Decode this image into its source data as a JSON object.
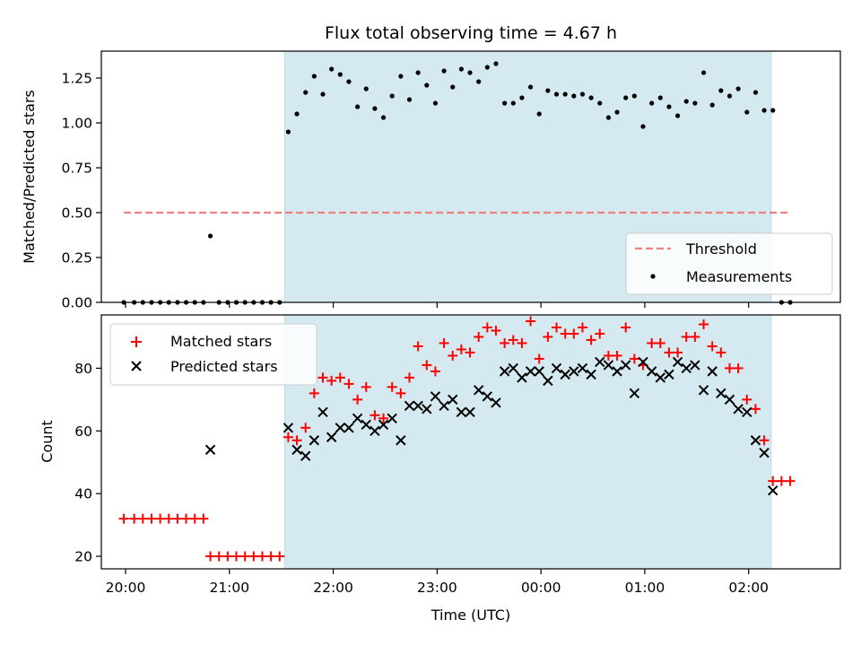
{
  "chart_data": [
    {
      "type": "scatter",
      "title": "Flux total observing time = 4.67 h",
      "xlabel": "",
      "ylabel": "Matched/Predicted stars",
      "xlim": [
        "19:46",
        "02:53"
      ],
      "ylim": [
        0,
        1.4
      ],
      "yticks": [
        "0.00",
        "0.25",
        "0.50",
        "0.75",
        "1.00",
        "1.25"
      ],
      "observing_window": [
        "21:32",
        "02:13"
      ],
      "shade_color": "#d4eaf0",
      "threshold": {
        "label": "Threshold",
        "value": 0.5,
        "from": "19:59",
        "to": "02:23",
        "color": "#f08080"
      },
      "legend": {
        "placement": "lower right"
      },
      "series": [
        {
          "name": "Measurements",
          "color": "#000000",
          "points": [
            [
              "19:59",
              0
            ],
            [
              "20:05",
              0
            ],
            [
              "20:10",
              0
            ],
            [
              "20:15",
              0
            ],
            [
              "20:20",
              0
            ],
            [
              "20:25",
              0
            ],
            [
              "20:30",
              0
            ],
            [
              "20:35",
              0
            ],
            [
              "20:40",
              0
            ],
            [
              "20:45",
              0
            ],
            [
              "20:49",
              0.37
            ],
            [
              "20:54",
              0
            ],
            [
              "20:59",
              0
            ],
            [
              "21:04",
              0
            ],
            [
              "21:09",
              0
            ],
            [
              "21:14",
              0
            ],
            [
              "21:19",
              0
            ],
            [
              "21:24",
              0
            ],
            [
              "21:29",
              0
            ],
            [
              "21:34",
              0.95
            ],
            [
              "21:39",
              1.05
            ],
            [
              "21:44",
              1.17
            ],
            [
              "21:49",
              1.26
            ],
            [
              "21:54",
              1.16
            ],
            [
              "21:59",
              1.3
            ],
            [
              "22:04",
              1.27
            ],
            [
              "22:09",
              1.23
            ],
            [
              "22:14",
              1.09
            ],
            [
              "22:19",
              1.19
            ],
            [
              "22:24",
              1.08
            ],
            [
              "22:29",
              1.03
            ],
            [
              "22:34",
              1.15
            ],
            [
              "22:39",
              1.26
            ],
            [
              "22:44",
              1.13
            ],
            [
              "22:49",
              1.28
            ],
            [
              "22:54",
              1.21
            ],
            [
              "22:59",
              1.11
            ],
            [
              "23:04",
              1.29
            ],
            [
              "23:09",
              1.2
            ],
            [
              "23:14",
              1.3
            ],
            [
              "23:19",
              1.28
            ],
            [
              "23:24",
              1.23
            ],
            [
              "23:29",
              1.31
            ],
            [
              "23:34",
              1.33
            ],
            [
              "23:39",
              1.11
            ],
            [
              "23:44",
              1.11
            ],
            [
              "23:49",
              1.14
            ],
            [
              "23:54",
              1.2
            ],
            [
              "23:59",
              1.05
            ],
            [
              "00:04",
              1.18
            ],
            [
              "00:09",
              1.16
            ],
            [
              "00:14",
              1.16
            ],
            [
              "00:19",
              1.15
            ],
            [
              "00:24",
              1.16
            ],
            [
              "00:29",
              1.14
            ],
            [
              "00:34",
              1.11
            ],
            [
              "00:39",
              1.03
            ],
            [
              "00:44",
              1.06
            ],
            [
              "00:49",
              1.14
            ],
            [
              "00:54",
              1.15
            ],
            [
              "00:59",
              0.98
            ],
            [
              "01:04",
              1.11
            ],
            [
              "01:09",
              1.14
            ],
            [
              "01:14",
              1.09
            ],
            [
              "01:19",
              1.04
            ],
            [
              "01:24",
              1.12
            ],
            [
              "01:29",
              1.11
            ],
            [
              "01:34",
              1.28
            ],
            [
              "01:39",
              1.1
            ],
            [
              "01:44",
              1.18
            ],
            [
              "01:49",
              1.15
            ],
            [
              "01:54",
              1.19
            ],
            [
              "01:59",
              1.06
            ],
            [
              "02:04",
              1.17
            ],
            [
              "02:09",
              1.07
            ],
            [
              "02:14",
              1.07
            ],
            [
              "02:19",
              0
            ],
            [
              "02:24",
              0
            ]
          ]
        }
      ]
    },
    {
      "type": "scatter",
      "title": "",
      "xlabel": "Time (UTC)",
      "ylabel": "Count",
      "xlim": [
        "19:46",
        "02:53"
      ],
      "ylim": [
        16,
        97
      ],
      "xticks": [
        "20:00",
        "21:00",
        "22:00",
        "23:00",
        "00:00",
        "01:00",
        "02:00"
      ],
      "yticks": [
        "20",
        "40",
        "60",
        "80"
      ],
      "observing_window": [
        "21:32",
        "02:13"
      ],
      "shade_color": "#d4eaf0",
      "legend": {
        "placement": "upper left"
      },
      "series": [
        {
          "name": "Matched stars",
          "marker": "plus",
          "color": "#ff0000",
          "points": [
            [
              "19:59",
              32
            ],
            [
              "20:05",
              32
            ],
            [
              "20:10",
              32
            ],
            [
              "20:15",
              32
            ],
            [
              "20:20",
              32
            ],
            [
              "20:25",
              32
            ],
            [
              "20:30",
              32
            ],
            [
              "20:35",
              32
            ],
            [
              "20:40",
              32
            ],
            [
              "20:45",
              32
            ],
            [
              "20:49",
              20
            ],
            [
              "20:54",
              20
            ],
            [
              "20:59",
              20
            ],
            [
              "21:04",
              20
            ],
            [
              "21:09",
              20
            ],
            [
              "21:14",
              20
            ],
            [
              "21:19",
              20
            ],
            [
              "21:24",
              20
            ],
            [
              "21:29",
              20
            ],
            [
              "21:34",
              58
            ],
            [
              "21:39",
              57
            ],
            [
              "21:44",
              61
            ],
            [
              "21:49",
              72
            ],
            [
              "21:54",
              77
            ],
            [
              "21:59",
              76
            ],
            [
              "22:04",
              77
            ],
            [
              "22:09",
              75
            ],
            [
              "22:14",
              70
            ],
            [
              "22:19",
              74
            ],
            [
              "22:24",
              65
            ],
            [
              "22:29",
              64
            ],
            [
              "22:34",
              74
            ],
            [
              "22:39",
              72
            ],
            [
              "22:44",
              77
            ],
            [
              "22:49",
              87
            ],
            [
              "22:54",
              81
            ],
            [
              "22:59",
              79
            ],
            [
              "23:04",
              88
            ],
            [
              "23:09",
              84
            ],
            [
              "23:14",
              86
            ],
            [
              "23:19",
              85
            ],
            [
              "23:24",
              90
            ],
            [
              "23:29",
              93
            ],
            [
              "23:34",
              92
            ],
            [
              "23:39",
              88
            ],
            [
              "23:44",
              89
            ],
            [
              "23:49",
              88
            ],
            [
              "23:54",
              95
            ],
            [
              "23:59",
              83
            ],
            [
              "00:04",
              90
            ],
            [
              "00:09",
              93
            ],
            [
              "00:14",
              91
            ],
            [
              "00:19",
              91
            ],
            [
              "00:24",
              93
            ],
            [
              "00:29",
              89
            ],
            [
              "00:34",
              91
            ],
            [
              "00:39",
              84
            ],
            [
              "00:44",
              84
            ],
            [
              "00:49",
              93
            ],
            [
              "00:54",
              83
            ],
            [
              "00:59",
              81
            ],
            [
              "01:04",
              88
            ],
            [
              "01:09",
              88
            ],
            [
              "01:14",
              85
            ],
            [
              "01:19",
              85
            ],
            [
              "01:24",
              90
            ],
            [
              "01:29",
              90
            ],
            [
              "01:34",
              94
            ],
            [
              "01:39",
              87
            ],
            [
              "01:44",
              85
            ],
            [
              "01:49",
              80
            ],
            [
              "01:54",
              80
            ],
            [
              "01:59",
              70
            ],
            [
              "02:04",
              67
            ],
            [
              "02:09",
              57
            ],
            [
              "02:14",
              44
            ],
            [
              "02:19",
              44
            ],
            [
              "02:24",
              44
            ]
          ]
        },
        {
          "name": "Predicted stars",
          "marker": "x",
          "color": "#000000",
          "points": [
            [
              "20:49",
              54
            ],
            [
              "21:34",
              61
            ],
            [
              "21:39",
              54
            ],
            [
              "21:44",
              52
            ],
            [
              "21:49",
              57
            ],
            [
              "21:54",
              66
            ],
            [
              "21:59",
              58
            ],
            [
              "22:04",
              61
            ],
            [
              "22:09",
              61
            ],
            [
              "22:14",
              64
            ],
            [
              "22:19",
              62
            ],
            [
              "22:24",
              60
            ],
            [
              "22:29",
              62
            ],
            [
              "22:34",
              64
            ],
            [
              "22:39",
              57
            ],
            [
              "22:44",
              68
            ],
            [
              "22:49",
              68
            ],
            [
              "22:54",
              67
            ],
            [
              "22:59",
              71
            ],
            [
              "23:04",
              68
            ],
            [
              "23:09",
              70
            ],
            [
              "23:14",
              66
            ],
            [
              "23:19",
              66
            ],
            [
              "23:24",
              73
            ],
            [
              "23:29",
              71
            ],
            [
              "23:34",
              69
            ],
            [
              "23:39",
              79
            ],
            [
              "23:44",
              80
            ],
            [
              "23:49",
              77
            ],
            [
              "23:54",
              79
            ],
            [
              "23:59",
              79
            ],
            [
              "00:04",
              76
            ],
            [
              "00:09",
              80
            ],
            [
              "00:14",
              78
            ],
            [
              "00:19",
              79
            ],
            [
              "00:24",
              80
            ],
            [
              "00:29",
              78
            ],
            [
              "00:34",
              82
            ],
            [
              "00:39",
              81
            ],
            [
              "00:44",
              79
            ],
            [
              "00:49",
              81
            ],
            [
              "00:54",
              72
            ],
            [
              "00:59",
              82
            ],
            [
              "01:04",
              79
            ],
            [
              "01:09",
              77
            ],
            [
              "01:14",
              78
            ],
            [
              "01:19",
              82
            ],
            [
              "01:24",
              80
            ],
            [
              "01:29",
              81
            ],
            [
              "01:34",
              73
            ],
            [
              "01:39",
              79
            ],
            [
              "01:44",
              72
            ],
            [
              "01:49",
              70
            ],
            [
              "01:54",
              67
            ],
            [
              "01:59",
              66
            ],
            [
              "02:04",
              57
            ],
            [
              "02:09",
              53
            ],
            [
              "02:14",
              41
            ]
          ]
        }
      ]
    }
  ]
}
